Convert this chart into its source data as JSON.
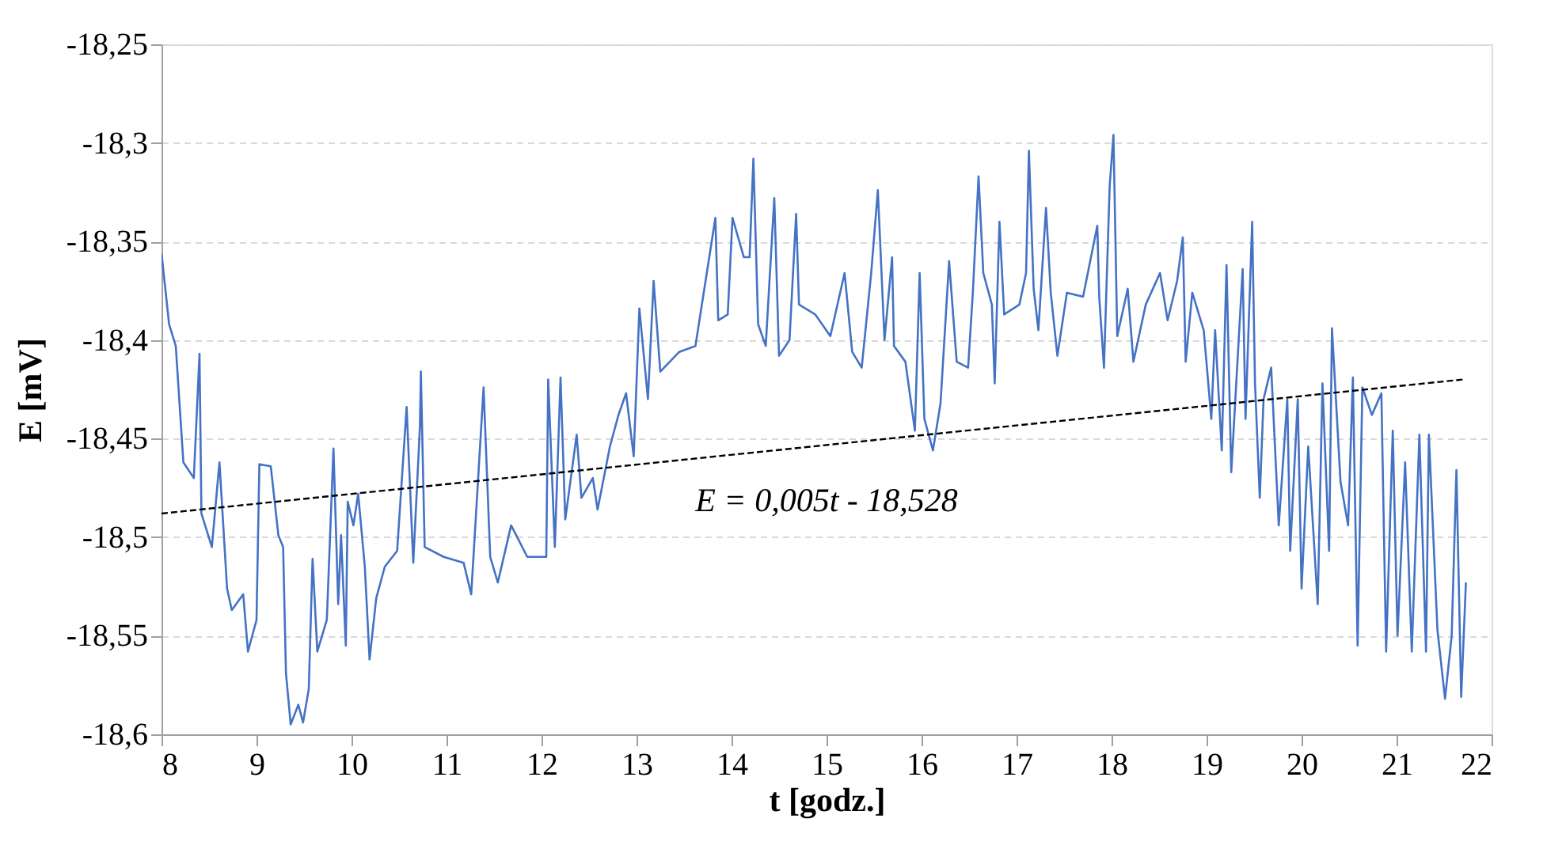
{
  "chart_data": {
    "type": "line",
    "xlabel": "t [godz.]",
    "ylabel": "E [mV]",
    "xlim": [
      8,
      22
    ],
    "xticks": [
      8,
      9,
      10,
      11,
      12,
      13,
      14,
      15,
      16,
      17,
      18,
      19,
      20,
      21,
      22
    ],
    "ylim": [
      -18.6,
      -18.25
    ],
    "yticks": [
      {
        "value": -18.6,
        "label": "-18,6"
      },
      {
        "value": -18.55,
        "label": "-18,55"
      },
      {
        "value": -18.5,
        "label": "-18,5"
      },
      {
        "value": -18.45,
        "label": "-18,45"
      },
      {
        "value": -18.4,
        "label": "-18,4"
      },
      {
        "value": -18.35,
        "label": "-18,35"
      },
      {
        "value": -18.3,
        "label": "-18,3"
      },
      {
        "value": -18.25,
        "label": "-18,25"
      }
    ],
    "grid": "y",
    "marker": "none",
    "line_style": "solid",
    "annotations": [
      "E = 0,005t - 18,528"
    ],
    "series": [
      {
        "type": "line",
        "color": "#4472c4",
        "x": [
          8.0,
          8.08,
          8.15,
          8.23,
          8.34,
          8.4,
          8.42,
          8.53,
          8.61,
          8.69,
          8.74,
          8.86,
          8.91,
          9.0,
          9.03,
          9.15,
          9.23,
          9.28,
          9.31,
          9.36,
          9.44,
          9.49,
          9.55,
          9.59,
          9.64,
          9.74,
          9.81,
          9.86,
          9.89,
          9.94,
          9.96,
          10.02,
          10.07,
          10.14,
          10.19,
          10.26,
          10.35,
          10.48,
          10.58,
          10.65,
          10.72,
          10.73,
          10.77,
          10.97,
          11.18,
          11.26,
          11.39,
          11.46,
          11.54,
          11.68,
          11.85,
          12.05,
          12.07,
          12.14,
          12.2,
          12.25,
          12.37,
          12.42,
          12.54,
          12.59,
          12.72,
          12.81,
          12.89,
          12.97,
          13.03,
          13.12,
          13.18,
          13.25,
          13.45,
          13.62,
          13.83,
          13.86,
          13.96,
          14.01,
          14.13,
          14.19,
          14.23,
          14.28,
          14.36,
          14.45,
          14.5,
          14.61,
          14.68,
          14.71,
          14.88,
          15.04,
          15.19,
          15.27,
          15.37,
          15.47,
          15.54,
          15.61,
          15.69,
          15.71,
          15.83,
          15.93,
          15.98,
          16.03,
          16.12,
          16.2,
          16.29,
          16.37,
          16.49,
          16.54,
          16.6,
          16.65,
          16.74,
          16.77,
          16.82,
          16.87,
          17.03,
          17.1,
          17.13,
          17.18,
          17.23,
          17.31,
          17.36,
          17.43,
          17.53,
          17.7,
          17.85,
          17.87,
          17.92,
          17.98,
          18.02,
          18.06,
          18.17,
          18.23,
          18.36,
          18.51,
          18.59,
          18.69,
          18.75,
          18.78,
          18.85,
          18.97,
          19.05,
          19.09,
          19.16,
          19.21,
          19.26,
          19.38,
          19.41,
          19.48,
          19.51,
          19.56,
          19.6,
          19.68,
          19.76,
          19.85,
          19.88,
          19.96,
          20.0,
          20.07,
          20.17,
          20.22,
          20.29,
          20.32,
          20.41,
          20.49,
          20.54,
          20.59,
          20.64,
          20.74,
          20.84,
          20.89,
          20.96,
          21.01,
          21.09,
          21.16,
          21.24,
          21.31,
          21.34,
          21.43,
          21.51,
          21.58,
          21.63,
          21.68,
          21.73
        ],
        "values": [
          -18.356,
          -18.392,
          -18.403,
          -18.462,
          -18.47,
          -18.407,
          -18.488,
          -18.505,
          -18.462,
          -18.526,
          -18.537,
          -18.529,
          -18.558,
          -18.542,
          -18.463,
          -18.464,
          -18.499,
          -18.505,
          -18.569,
          -18.595,
          -18.585,
          -18.594,
          -18.577,
          -18.511,
          -18.558,
          -18.542,
          -18.455,
          -18.534,
          -18.499,
          -18.555,
          -18.482,
          -18.494,
          -18.478,
          -18.515,
          -18.562,
          -18.531,
          -18.515,
          -18.507,
          -18.434,
          -18.513,
          -18.444,
          -18.416,
          -18.505,
          -18.51,
          -18.513,
          -18.529,
          -18.424,
          -18.51,
          -18.523,
          -18.494,
          -18.51,
          -18.51,
          -18.42,
          -18.505,
          -18.419,
          -18.491,
          -18.448,
          -18.48,
          -18.47,
          -18.486,
          -18.454,
          -18.438,
          -18.427,
          -18.459,
          -18.384,
          -18.43,
          -18.37,
          -18.416,
          -18.406,
          -18.403,
          -18.338,
          -18.39,
          -18.387,
          -18.338,
          -18.358,
          -18.358,
          -18.308,
          -18.392,
          -18.403,
          -18.328,
          -18.408,
          -18.4,
          -18.336,
          -18.382,
          -18.387,
          -18.398,
          -18.366,
          -18.406,
          -18.414,
          -18.366,
          -18.324,
          -18.4,
          -18.358,
          -18.403,
          -18.411,
          -18.446,
          -18.366,
          -18.44,
          -18.456,
          -18.432,
          -18.36,
          -18.411,
          -18.414,
          -18.376,
          -18.317,
          -18.366,
          -18.382,
          -18.422,
          -18.34,
          -18.387,
          -18.382,
          -18.366,
          -18.304,
          -18.374,
          -18.395,
          -18.333,
          -18.376,
          -18.408,
          -18.376,
          -18.378,
          -18.342,
          -18.378,
          -18.414,
          -18.322,
          -18.296,
          -18.398,
          -18.374,
          -18.411,
          -18.382,
          -18.366,
          -18.39,
          -18.37,
          -18.348,
          -18.411,
          -18.376,
          -18.395,
          -18.44,
          -18.395,
          -18.456,
          -18.362,
          -18.467,
          -18.364,
          -18.44,
          -18.34,
          -18.422,
          -18.48,
          -18.43,
          -18.414,
          -18.494,
          -18.43,
          -18.507,
          -18.43,
          -18.526,
          -18.454,
          -18.534,
          -18.422,
          -18.507,
          -18.394,
          -18.472,
          -18.494,
          -18.419,
          -18.555,
          -18.424,
          -18.438,
          -18.427,
          -18.558,
          -18.446,
          -18.55,
          -18.462,
          -18.558,
          -18.448,
          -18.558,
          -18.448,
          -18.547,
          -18.582,
          -18.55,
          -18.466,
          -18.581,
          -18.523
        ]
      },
      {
        "type": "line",
        "color": "#000000",
        "line_style": "dashed",
        "x": [
          8,
          21.7
        ],
        "values": [
          -18.488,
          -18.42
        ]
      }
    ]
  }
}
